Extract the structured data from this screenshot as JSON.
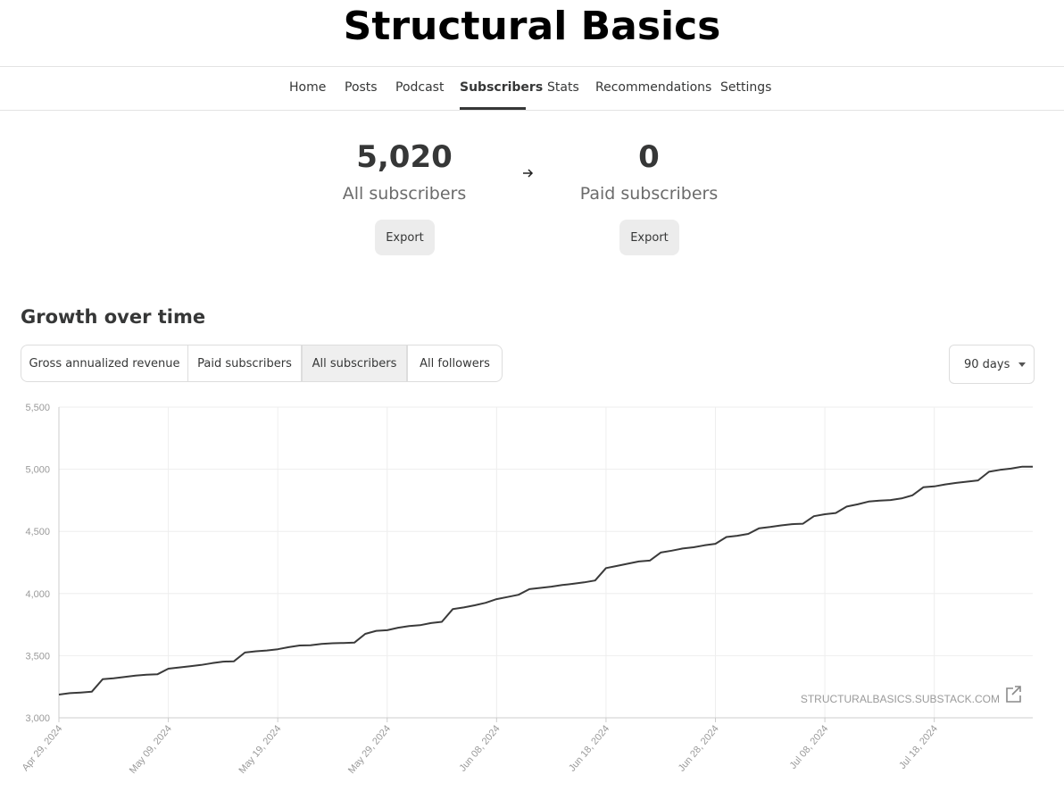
{
  "header": {
    "title": "Structural Basics"
  },
  "nav": [
    {
      "label": "Home",
      "active": false
    },
    {
      "label": "Posts",
      "active": false
    },
    {
      "label": "Podcast",
      "active": false
    },
    {
      "label": "Subscribers",
      "active": true
    },
    {
      "label": "Stats",
      "active": false
    },
    {
      "label": "Recommendations",
      "active": false
    },
    {
      "label": "Settings",
      "active": false
    }
  ],
  "stats": [
    {
      "value": "5,020",
      "label": "All subscribers",
      "button": "Export"
    },
    {
      "value": "0",
      "label": "Paid subscribers",
      "button": "Export"
    }
  ],
  "growth": {
    "title": "Growth over time",
    "tabs": [
      {
        "label": "Gross annualized revenue",
        "active": false
      },
      {
        "label": "Paid subscribers",
        "active": false
      },
      {
        "label": "All subscribers",
        "active": true
      },
      {
        "label": "All followers",
        "active": false
      }
    ],
    "range": "90 days"
  },
  "chart_data": {
    "type": "line",
    "color": "#3a3a3a",
    "grid": true,
    "source": "STRUCTURALBASICS.SUBSTACK.COM",
    "x": [
      "2024-04-29",
      "2024-04-30",
      "2024-05-01",
      "2024-05-02",
      "2024-05-03",
      "2024-05-04",
      "2024-05-05",
      "2024-05-06",
      "2024-05-07",
      "2024-05-08",
      "2024-05-09",
      "2024-05-10",
      "2024-05-11",
      "2024-05-12",
      "2024-05-13",
      "2024-05-14",
      "2024-05-15",
      "2024-05-16",
      "2024-05-17",
      "2024-05-18",
      "2024-05-19",
      "2024-05-20",
      "2024-05-21",
      "2024-05-22",
      "2024-05-23",
      "2024-05-24",
      "2024-05-25",
      "2024-05-26",
      "2024-05-27",
      "2024-05-28",
      "2024-05-29",
      "2024-05-30",
      "2024-05-31",
      "2024-06-01",
      "2024-06-02",
      "2024-06-03",
      "2024-06-04",
      "2024-06-05",
      "2024-06-06",
      "2024-06-07",
      "2024-06-08",
      "2024-06-09",
      "2024-06-10",
      "2024-06-11",
      "2024-06-12",
      "2024-06-13",
      "2024-06-14",
      "2024-06-15",
      "2024-06-16",
      "2024-06-17",
      "2024-06-18",
      "2024-06-19",
      "2024-06-20",
      "2024-06-21",
      "2024-06-22",
      "2024-06-23",
      "2024-06-24",
      "2024-06-25",
      "2024-06-26",
      "2024-06-27",
      "2024-06-28",
      "2024-06-29",
      "2024-06-30",
      "2024-07-01",
      "2024-07-02",
      "2024-07-03",
      "2024-07-04",
      "2024-07-05",
      "2024-07-06",
      "2024-07-07",
      "2024-07-08",
      "2024-07-09",
      "2024-07-10",
      "2024-07-11",
      "2024-07-12",
      "2024-07-13",
      "2024-07-14",
      "2024-07-15",
      "2024-07-16",
      "2024-07-17",
      "2024-07-18",
      "2024-07-19",
      "2024-07-20",
      "2024-07-21",
      "2024-07-22",
      "2024-07-23",
      "2024-07-24",
      "2024-07-25",
      "2024-07-26",
      "2024-07-27"
    ],
    "values": [
      3187,
      3198,
      3203,
      3210,
      3310,
      3318,
      3328,
      3340,
      3347,
      3350,
      3395,
      3405,
      3415,
      3425,
      3440,
      3452,
      3455,
      3525,
      3535,
      3542,
      3552,
      3568,
      3582,
      3584,
      3595,
      3600,
      3602,
      3605,
      3675,
      3700,
      3705,
      3725,
      3738,
      3745,
      3762,
      3772,
      3875,
      3888,
      3905,
      3925,
      3955,
      3972,
      3990,
      4035,
      4045,
      4055,
      4068,
      4078,
      4090,
      4105,
      4205,
      4222,
      4240,
      4258,
      4265,
      4330,
      4345,
      4362,
      4372,
      4388,
      4400,
      4455,
      4465,
      4480,
      4525,
      4535,
      4548,
      4558,
      4562,
      4622,
      4638,
      4648,
      4700,
      4718,
      4740,
      4748,
      4752,
      4765,
      4790,
      4855,
      4862,
      4878,
      4890,
      4900,
      4910,
      4980,
      4995,
      5005,
      5020,
      5020
    ],
    "xlim": [
      "2024-04-29",
      "2024-07-27"
    ],
    "xticks": [
      {
        "value": "2024-04-29",
        "label": "Apr 29, 2024"
      },
      {
        "value": "2024-05-09",
        "label": "May 09, 2024"
      },
      {
        "value": "2024-05-19",
        "label": "May 19, 2024"
      },
      {
        "value": "2024-05-29",
        "label": "May 29, 2024"
      },
      {
        "value": "2024-06-08",
        "label": "Jun 08, 2024"
      },
      {
        "value": "2024-06-18",
        "label": "Jun 18, 2024"
      },
      {
        "value": "2024-06-28",
        "label": "Jun 28, 2024"
      },
      {
        "value": "2024-07-08",
        "label": "Jul 08, 2024"
      },
      {
        "value": "2024-07-18",
        "label": "Jul 18, 2024"
      }
    ],
    "ylim": [
      3000,
      5500
    ],
    "yticks": [
      {
        "value": 3000,
        "label": "3,000"
      },
      {
        "value": 3500,
        "label": "3,500"
      },
      {
        "value": 4000,
        "label": "4,000"
      },
      {
        "value": 4500,
        "label": "4,500"
      },
      {
        "value": 5000,
        "label": "5,000"
      },
      {
        "value": 5500,
        "label": "5,500"
      }
    ]
  }
}
